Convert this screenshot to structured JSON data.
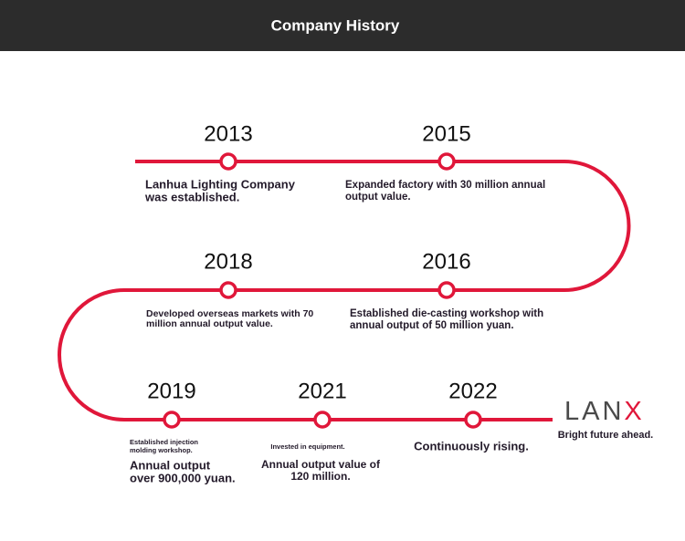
{
  "header": {
    "title": "Company History"
  },
  "events": [
    {
      "year": "2013",
      "description": [
        "Lanhua Lighting Company",
        "was established."
      ]
    },
    {
      "year": "2015",
      "description": [
        "Expanded factory with 30 million annual",
        "output value."
      ]
    },
    {
      "year": "2018",
      "description": [
        "Developed overseas markets with 70",
        "million annual output value."
      ]
    },
    {
      "year": "2016",
      "description": [
        "Established die-casting workshop with",
        "annual output of 50 million yuan."
      ]
    },
    {
      "year": "2019",
      "note": [
        "Established injection",
        "molding workshop."
      ],
      "description": [
        "Annual output",
        "over 900,000 yuan."
      ]
    },
    {
      "year": "2021",
      "note": [
        "Invested in equipment."
      ],
      "description": [
        "Annual output value of",
        "120 million."
      ]
    },
    {
      "year": "2022",
      "description": [
        "Continuously rising."
      ]
    }
  ],
  "logo": {
    "text": "LAN",
    "accent": "X"
  },
  "tagline": "Bright future ahead."
}
